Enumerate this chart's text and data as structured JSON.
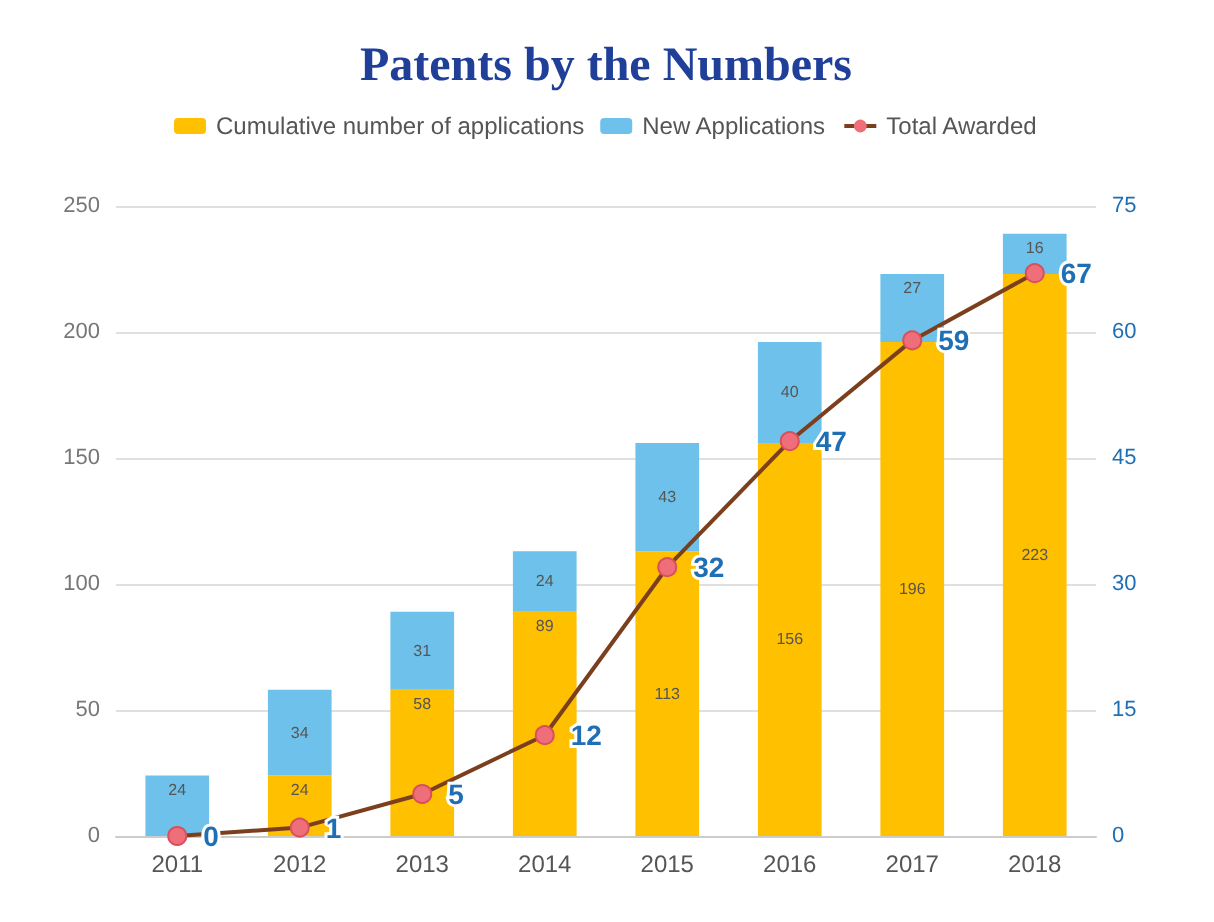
{
  "chart_data": {
    "type": "bar",
    "title": "Patents by the Numbers",
    "stacked": true,
    "categories": [
      "2011",
      "2012",
      "2013",
      "2014",
      "2015",
      "2016",
      "2017",
      "2018"
    ],
    "series": [
      {
        "name": "Cumulative number of applications",
        "color": "#ffc000",
        "values": [
          0,
          24,
          58,
          89,
          113,
          156,
          196,
          223
        ],
        "value_labels": [
          null,
          "24",
          "58",
          "89",
          "113",
          "156",
          "196",
          "223"
        ]
      },
      {
        "name": "New Applications",
        "color": "#6ec1ea",
        "values": [
          24,
          34,
          31,
          24,
          43,
          40,
          27,
          16
        ],
        "value_labels": [
          "24",
          "34",
          "31",
          "24",
          "43",
          "40",
          "27",
          "16"
        ]
      },
      {
        "name": "Total Awarded",
        "type": "line",
        "axis": "y2",
        "color": "#7b3f1e",
        "values": [
          0,
          1,
          5,
          12,
          32,
          47,
          59,
          67
        ],
        "value_labels": [
          "0",
          "1",
          "5",
          "12",
          "32",
          "47",
          "59",
          "67"
        ]
      }
    ],
    "ylim": [
      0,
      250
    ],
    "yticks": [
      0,
      50,
      100,
      150,
      200,
      250
    ],
    "y2lim": [
      0,
      75
    ],
    "y2ticks": [
      0,
      15,
      30,
      45,
      60,
      75
    ],
    "grid": "y",
    "legend": "top",
    "marker": "circle"
  }
}
